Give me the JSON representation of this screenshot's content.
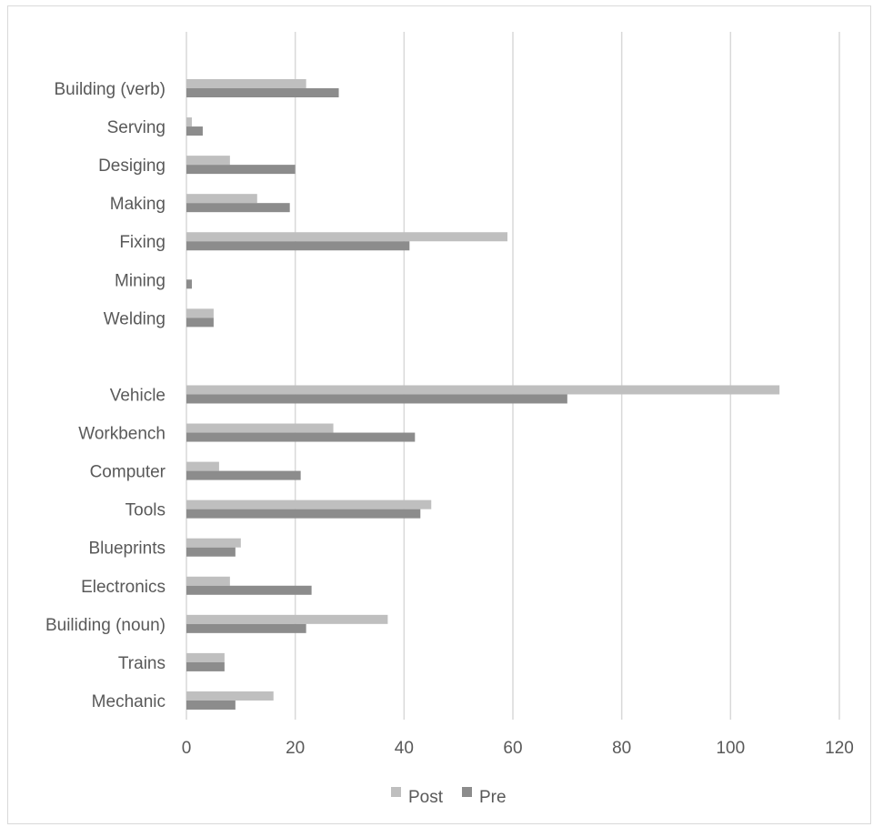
{
  "chart_data": {
    "type": "bar",
    "orientation": "horizontal",
    "title": "",
    "xlabel": "",
    "ylabel": "",
    "xlim": [
      0,
      120
    ],
    "x_ticks": [
      "0",
      "20",
      "40",
      "60",
      "80",
      "100",
      "120"
    ],
    "grid": true,
    "legend_position": "bottom",
    "categories": [
      "Building (verb)",
      "Serving",
      "Desiging",
      "Making",
      "Fixing",
      "Mining",
      "Welding",
      "",
      "Vehicle",
      "Workbench",
      "Computer",
      "Tools",
      "Blueprints",
      "Electronics",
      "Builiding (noun)",
      "Trains",
      "Mechanic"
    ],
    "series": [
      {
        "name": "Post",
        "color": "#bfbfbf",
        "values": [
          22,
          1,
          8,
          13,
          59,
          0,
          5,
          null,
          109,
          27,
          6,
          45,
          10,
          8,
          37,
          7,
          16
        ]
      },
      {
        "name": "Pre",
        "color": "#8c8c8c",
        "values": [
          28,
          3,
          20,
          19,
          41,
          1,
          5,
          null,
          70,
          42,
          21,
          43,
          9,
          23,
          22,
          7,
          9
        ]
      }
    ]
  }
}
